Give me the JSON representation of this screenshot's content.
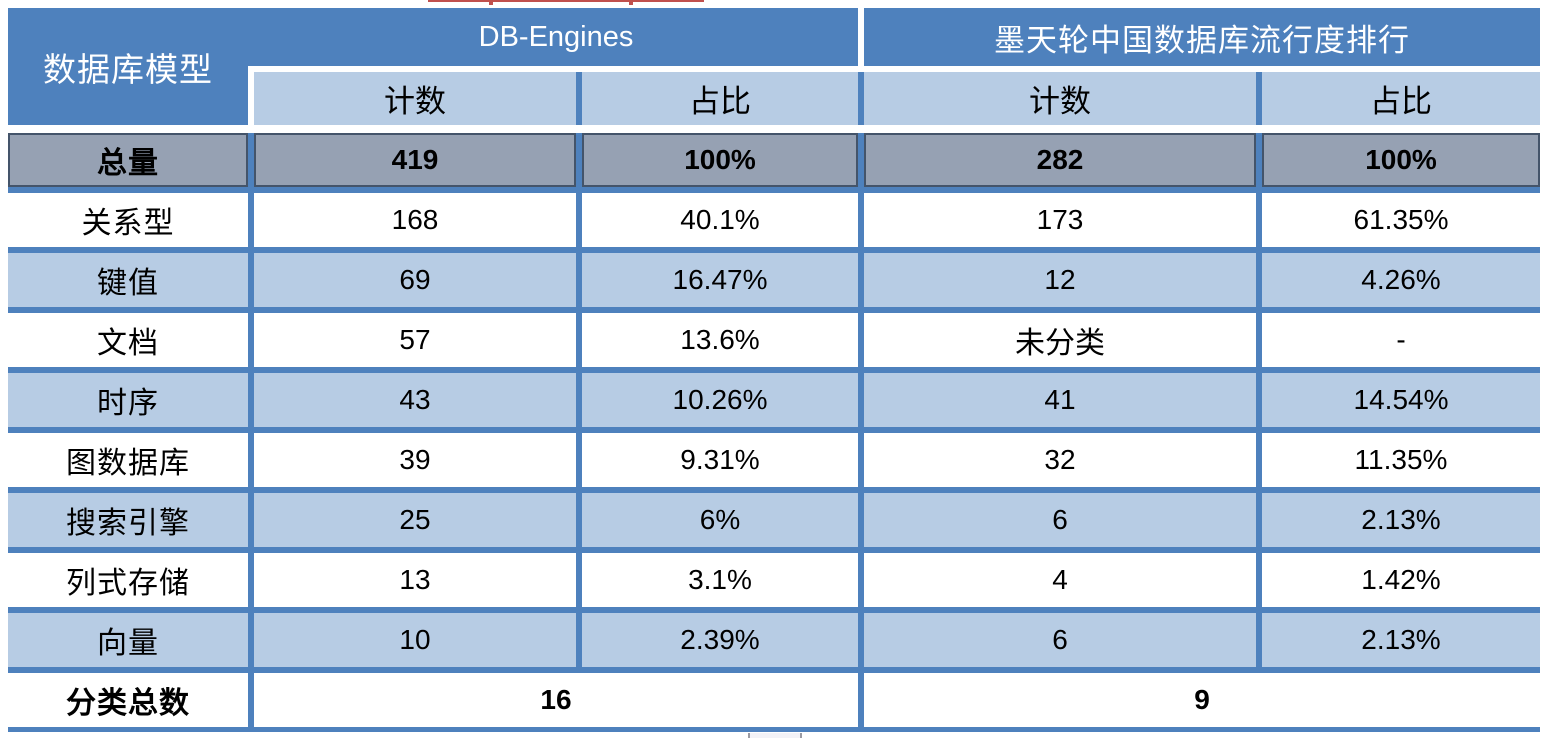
{
  "chart_data": {
    "type": "table",
    "corner_header": "数据库模型",
    "column_groups": [
      {
        "label": "DB-Engines",
        "columns": [
          "计数",
          "占比"
        ]
      },
      {
        "label": "墨天轮中国数据库流行度排行",
        "columns": [
          "计数",
          "占比"
        ]
      }
    ],
    "rows": [
      {
        "label": "总量",
        "values": [
          "419",
          "100%",
          "282",
          "100%"
        ]
      },
      {
        "label": "关系型",
        "values": [
          "168",
          "40.1%",
          "173",
          "61.35%"
        ]
      },
      {
        "label": "键值",
        "values": [
          "69",
          "16.47%",
          "12",
          "4.26%"
        ]
      },
      {
        "label": "文档",
        "values": [
          "57",
          "13.6%",
          "未分类",
          "-"
        ]
      },
      {
        "label": "时序",
        "values": [
          "43",
          "10.26%",
          "41",
          "14.54%"
        ]
      },
      {
        "label": "图数据库",
        "values": [
          "39",
          "9.31%",
          "32",
          "11.35%"
        ]
      },
      {
        "label": "搜索引擎",
        "values": [
          "25",
          "6%",
          "6",
          "2.13%"
        ]
      },
      {
        "label": "列式存储",
        "values": [
          "13",
          "3.1%",
          "4",
          "1.42%"
        ]
      },
      {
        "label": "向量",
        "values": [
          "10",
          "2.39%",
          "6",
          "2.13%"
        ]
      }
    ],
    "footer": {
      "label": "分类总数",
      "db_engines_total": "16",
      "motianlun_total": "9"
    }
  },
  "colors": {
    "header_blue": "#4E81BD",
    "grid_blue": "#4E81BD",
    "stripe_light_blue": "#B7CCE4",
    "total_row_gray": "#96A1B3",
    "total_row_outline": "#44546A",
    "header_text": "#FFFFFF",
    "body_text": "#000000",
    "artifact_red": "#C0504D"
  }
}
